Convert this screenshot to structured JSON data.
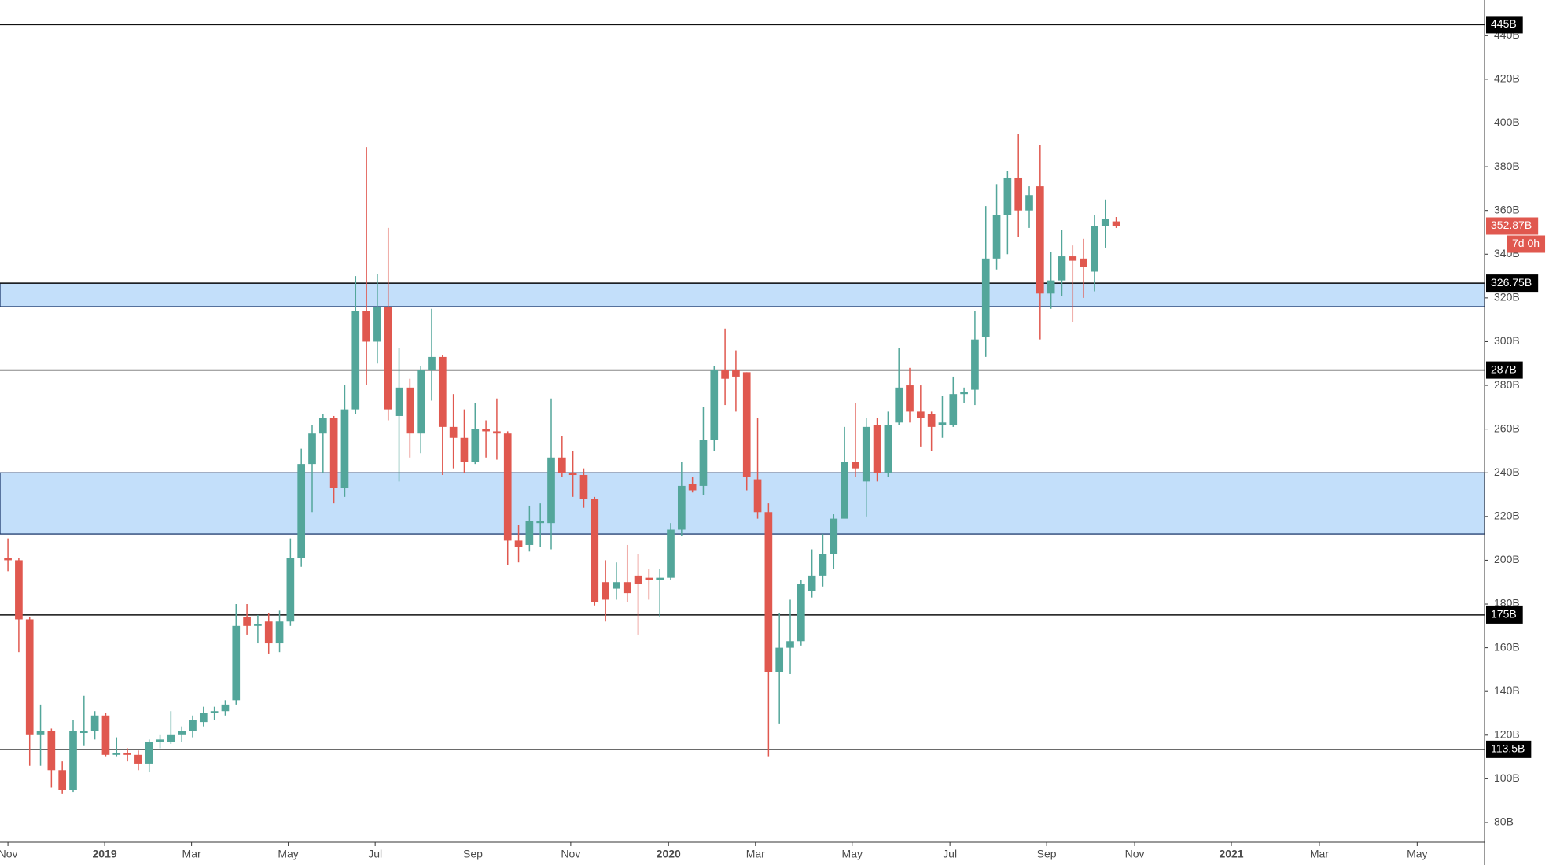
{
  "chart_data": {
    "type": "candlestick",
    "x": [
      0,
      1,
      2,
      3,
      4,
      5,
      6,
      7,
      8,
      9,
      10,
      11,
      12,
      13,
      14,
      15,
      16,
      17,
      18,
      19,
      20,
      21,
      22,
      23,
      24,
      25,
      26,
      27,
      28,
      29,
      30,
      31,
      32,
      33,
      34,
      35,
      36,
      37,
      38,
      39,
      40,
      41,
      42,
      43,
      44,
      45,
      46,
      47,
      48,
      49,
      50,
      51,
      52,
      53,
      54,
      55,
      56,
      57,
      58,
      59,
      60,
      61,
      62,
      63,
      64,
      65,
      66,
      67,
      68,
      69,
      70,
      71,
      72,
      73,
      74,
      75,
      76,
      77,
      78,
      79,
      80,
      81,
      82,
      83,
      84,
      85,
      86,
      87,
      88,
      89,
      90,
      91,
      92,
      93,
      94,
      95,
      96,
      97,
      98,
      99,
      100,
      101,
      102
    ],
    "open": [
      201,
      200,
      173,
      120,
      122,
      104,
      95,
      121,
      122,
      129,
      111,
      112,
      111,
      107,
      117,
      117,
      120,
      122,
      126,
      130,
      131,
      136,
      174,
      170,
      172,
      162,
      172,
      201,
      244,
      258,
      265,
      233,
      269,
      314,
      300,
      316,
      266,
      279,
      258,
      287,
      293,
      261,
      256,
      245,
      260,
      259,
      258,
      209,
      207,
      217,
      217,
      247,
      240,
      239,
      228,
      190,
      187,
      190,
      193,
      192,
      191,
      192,
      214,
      235,
      234,
      255,
      287,
      287,
      286,
      237,
      222,
      149,
      160,
      163,
      186,
      193,
      203,
      219,
      245,
      236,
      262,
      240,
      263,
      280,
      268,
      267,
      262,
      262,
      276,
      278,
      302,
      338,
      358,
      375,
      360,
      371,
      322,
      328,
      339,
      338,
      332,
      353,
      355
    ],
    "high": [
      210,
      201,
      174,
      134,
      123,
      108,
      127,
      138,
      131,
      130,
      119,
      114,
      113,
      118,
      120,
      131,
      124,
      129,
      133,
      133,
      136,
      180,
      180,
      175,
      176,
      177,
      210,
      251,
      262,
      267,
      266,
      280,
      330,
      389,
      331,
      352,
      297,
      283,
      289,
      315,
      294,
      276,
      269,
      272,
      264,
      274,
      259,
      216,
      225,
      226,
      274,
      257,
      250,
      242,
      229,
      200,
      199,
      207,
      203,
      196,
      196,
      217,
      245,
      238,
      270,
      289,
      306,
      296,
      286,
      265,
      226,
      176,
      182,
      191,
      205,
      212,
      221,
      261,
      272,
      265,
      265,
      268,
      297,
      288,
      280,
      268,
      275,
      284,
      279,
      314,
      362,
      372,
      378,
      395,
      371,
      390,
      341,
      351,
      344,
      347,
      358,
      365,
      357
    ],
    "low": [
      195,
      158,
      106,
      106,
      96,
      93,
      94,
      115,
      118,
      110,
      110,
      108,
      104,
      103,
      114,
      116,
      117,
      119,
      124,
      127,
      129,
      134,
      166,
      162,
      157,
      158,
      170,
      197,
      222,
      240,
      226,
      229,
      267,
      280,
      290,
      264,
      236,
      247,
      249,
      273,
      239,
      242,
      240,
      244,
      247,
      246,
      198,
      199,
      204,
      206,
      205,
      238,
      229,
      224,
      179,
      172,
      182,
      181,
      166,
      182,
      174,
      191,
      211,
      231,
      230,
      250,
      271,
      268,
      232,
      219,
      110,
      125,
      148,
      161,
      183,
      188,
      196,
      220,
      238,
      220,
      236,
      238,
      262,
      263,
      252,
      250,
      256,
      261,
      272,
      271,
      293,
      333,
      340,
      348,
      352,
      301,
      315,
      321,
      309,
      320,
      323,
      343,
      352
    ],
    "close": [
      200,
      173,
      120,
      122,
      104,
      95,
      122,
      122,
      129,
      111,
      112,
      111,
      107,
      117,
      118,
      120,
      122,
      127,
      130,
      131,
      134,
      170,
      170,
      171,
      162,
      172,
      201,
      244,
      258,
      265,
      233,
      269,
      314,
      300,
      316,
      269,
      279,
      258,
      287,
      293,
      261,
      256,
      245,
      260,
      259,
      258,
      209,
      206,
      218,
      218,
      247,
      240,
      239,
      228,
      181,
      182,
      190,
      185,
      189,
      191,
      192,
      214,
      234,
      232,
      255,
      287,
      283,
      284,
      238,
      222,
      149,
      160,
      163,
      189,
      193,
      203,
      219,
      245,
      242,
      261,
      240,
      262,
      279,
      268,
      265,
      261,
      263,
      276,
      277,
      301,
      338,
      358,
      375,
      360,
      367,
      322,
      328,
      339,
      337,
      334,
      353,
      356,
      352.87
    ],
    "up_color": "#53a69a",
    "down_color": "#e0584f",
    "xlim": [
      -0.73,
      135.9
    ],
    "xticks": [
      {
        "value": 0,
        "label": "Nov"
      },
      {
        "value": 8.9,
        "label": "2019"
      },
      {
        "value": 16.9,
        "label": "Mar"
      },
      {
        "value": 25.8,
        "label": "May"
      },
      {
        "value": 33.8,
        "label": "Jul"
      },
      {
        "value": 42.8,
        "label": "Sep"
      },
      {
        "value": 51.8,
        "label": "Nov"
      },
      {
        "value": 60.8,
        "label": "2020"
      },
      {
        "value": 68.8,
        "label": "Mar"
      },
      {
        "value": 77.7,
        "label": "May"
      },
      {
        "value": 86.7,
        "label": "Jul"
      },
      {
        "value": 95.6,
        "label": "Sep"
      },
      {
        "value": 103.7,
        "label": "Nov"
      },
      {
        "value": 112.6,
        "label": "2021"
      },
      {
        "value": 120.7,
        "label": "Mar"
      },
      {
        "value": 129.7,
        "label": "May"
      }
    ],
    "ylim": [
      71,
      456.3
    ],
    "yticks": [
      {
        "value": 80,
        "label": "80B"
      },
      {
        "value": 100,
        "label": "100B"
      },
      {
        "value": 120,
        "label": "120B"
      },
      {
        "value": 140,
        "label": "140B"
      },
      {
        "value": 160,
        "label": "160B"
      },
      {
        "value": 180,
        "label": "180B"
      },
      {
        "value": 200,
        "label": "200B"
      },
      {
        "value": 220,
        "label": "220B"
      },
      {
        "value": 240,
        "label": "240B"
      },
      {
        "value": 260,
        "label": "260B"
      },
      {
        "value": 280,
        "label": "280B"
      },
      {
        "value": 300,
        "label": "300B"
      },
      {
        "value": 320,
        "label": "320B"
      },
      {
        "value": 340,
        "label": "340B"
      },
      {
        "value": 360,
        "label": "360B"
      },
      {
        "value": 380,
        "label": "380B"
      },
      {
        "value": 400,
        "label": "400B"
      },
      {
        "value": 420,
        "label": "420B"
      },
      {
        "value": 440,
        "label": "440B"
      }
    ],
    "zones": [
      {
        "from": 316,
        "to": 326.75,
        "color": "#c3dffa"
      },
      {
        "from": 212,
        "to": 240,
        "color": "#c3dffa"
      }
    ],
    "levels": [
      {
        "value": 445,
        "label": "445B"
      },
      {
        "value": 326.75,
        "label": "326.75B"
      },
      {
        "value": 287,
        "label": "287B"
      },
      {
        "value": 175,
        "label": "175B"
      },
      {
        "value": 113.5,
        "label": "113.5B"
      }
    ],
    "last_price": {
      "value": 352.87,
      "label": "352.87B"
    },
    "countdown": "7d 0h"
  }
}
